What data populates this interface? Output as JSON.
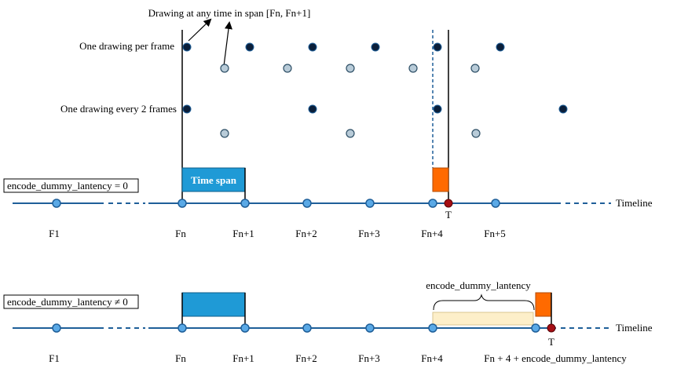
{
  "annotation": {
    "top_text": "Drawing at any time in span [Fn, Fn+1]",
    "row_label_one_per_frame": "One drawing per frame",
    "row_label_every_two": "One drawing every 2 frames"
  },
  "top_timeline": {
    "condition_label": "encode_dummy_lantency = 0",
    "span_label": "Time span",
    "timeline_label": "Timeline",
    "marker_label": "T",
    "frame_labels": [
      "F1",
      "Fn",
      "Fn+1",
      "Fn+2",
      "Fn+3",
      "Fn+4",
      "Fn+5"
    ]
  },
  "bottom_timeline": {
    "condition_label": "encode_dummy_lantency ≠ 0",
    "latency_label": "encode_dummy_lantency",
    "timeline_label": "Timeline",
    "marker_label": "T",
    "frame_labels": [
      "F1",
      "Fn",
      "Fn+1",
      "Fn+2",
      "Fn+3",
      "Fn+4",
      "Fn + 4 + encode_dummy_lantency"
    ]
  },
  "colors": {
    "timeline": "#1f5f99",
    "node_fill": "#5aa9e6",
    "dark_dot": "#0b1f3a",
    "light_dot": "#b8cbd8",
    "span_fill": "#1f9ad6",
    "orange": "#ff6a00",
    "marker_red": "#a50e14",
    "latency_fill": "#fdefc9"
  }
}
